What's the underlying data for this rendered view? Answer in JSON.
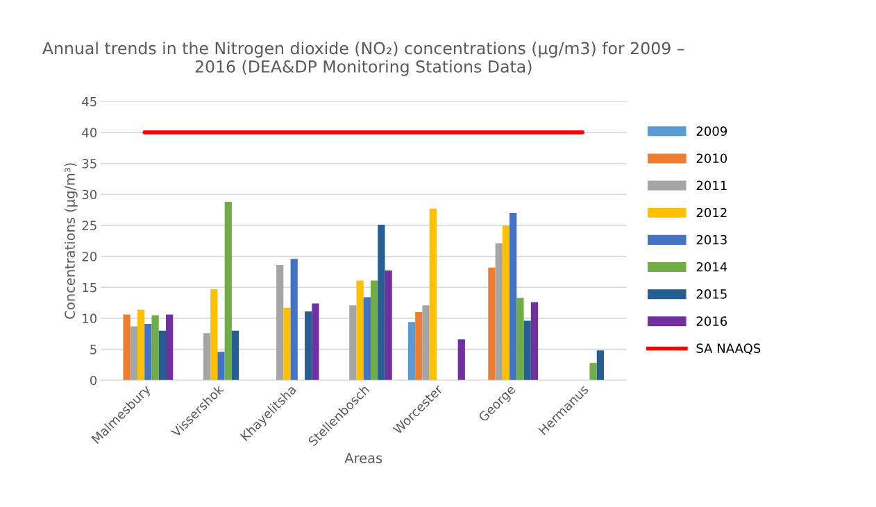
{
  "chart_data": {
    "type": "bar",
    "title": "Annual trends in the Nitrogen dioxide (NO₂) concentrations (µg/m3) for 2009 –\n2016 (DEA&DP Monitoring Stations Data)",
    "xlabel": "Areas",
    "ylabel": "Concentrations (µg/m³)",
    "categories": [
      "Malmesbury",
      "Vissershok",
      "Khayelitsha",
      "Stellenbosch",
      "Worcester",
      "George",
      "Hermanus"
    ],
    "series": [
      {
        "name": "2009",
        "color": "#5b9bd5",
        "values": [
          null,
          null,
          null,
          null,
          9.4,
          null,
          null
        ]
      },
      {
        "name": "2010",
        "color": "#ed7d31",
        "values": [
          10.6,
          null,
          null,
          null,
          11.0,
          18.2,
          null
        ]
      },
      {
        "name": "2011",
        "color": "#a5a5a5",
        "values": [
          8.7,
          7.6,
          18.6,
          12.1,
          12.1,
          22.1,
          null
        ]
      },
      {
        "name": "2012",
        "color": "#ffc000",
        "values": [
          11.4,
          14.7,
          11.7,
          16.1,
          27.7,
          25.0,
          null
        ]
      },
      {
        "name": "2013",
        "color": "#4472c4",
        "values": [
          9.1,
          4.6,
          19.6,
          13.4,
          null,
          27.0,
          null
        ]
      },
      {
        "name": "2014",
        "color": "#70ad47",
        "values": [
          10.5,
          28.8,
          null,
          16.1,
          null,
          13.3,
          2.8
        ]
      },
      {
        "name": "2015",
        "color": "#255e91",
        "values": [
          8.0,
          8.0,
          11.1,
          25.1,
          null,
          9.6,
          4.8
        ]
      },
      {
        "name": "2016",
        "color": "#7030a0",
        "values": [
          10.6,
          null,
          12.4,
          17.7,
          6.6,
          12.6,
          null
        ]
      },
      {
        "name": "SA NAAQS",
        "type": "line",
        "color": "#ff0000",
        "values": [
          40,
          40,
          40,
          40,
          40,
          40,
          40
        ]
      }
    ],
    "ylim": [
      0,
      45
    ],
    "yticks": [
      0,
      5,
      10,
      15,
      20,
      25,
      30,
      35,
      40,
      45
    ],
    "grid": "y",
    "legend": "right"
  }
}
